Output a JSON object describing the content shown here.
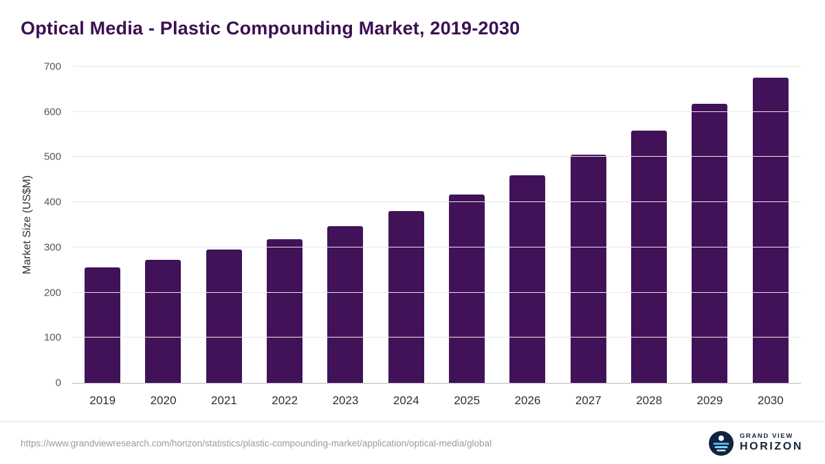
{
  "header": {
    "title": "Optical Media - Plastic Compounding Market, 2019-2030"
  },
  "chart_data": {
    "type": "bar",
    "title": "Optical Media - Plastic Compounding Market, 2019-2030",
    "categories": [
      "2019",
      "2020",
      "2021",
      "2022",
      "2023",
      "2024",
      "2025",
      "2026",
      "2027",
      "2028",
      "2029",
      "2030"
    ],
    "values": [
      255,
      273,
      295,
      318,
      347,
      381,
      417,
      459,
      506,
      559,
      618,
      676
    ],
    "xlabel": "",
    "ylabel": "Market Size (US$M)",
    "ylim": [
      0,
      700
    ],
    "yticks": [
      0,
      100,
      200,
      300,
      400,
      500,
      600,
      700
    ],
    "grid": "horizontal",
    "legend": "none",
    "bar_color": "#421259"
  },
  "footer": {
    "source_url": "https://www.grandviewresearch.com/horizon/statistics/plastic-compounding-market/application/optical-media/global",
    "logo": {
      "line1": "GRAND VIEW",
      "line2": "HORIZON",
      "icon": "horizon-sun-icon"
    }
  },
  "colors": {
    "title": "#3b1053",
    "bar": "#421259",
    "gridline": "#e7e7e7",
    "axis": "#b7b7b7",
    "logo_navy": "#13233f",
    "logo_blue": "#45b6e8"
  }
}
